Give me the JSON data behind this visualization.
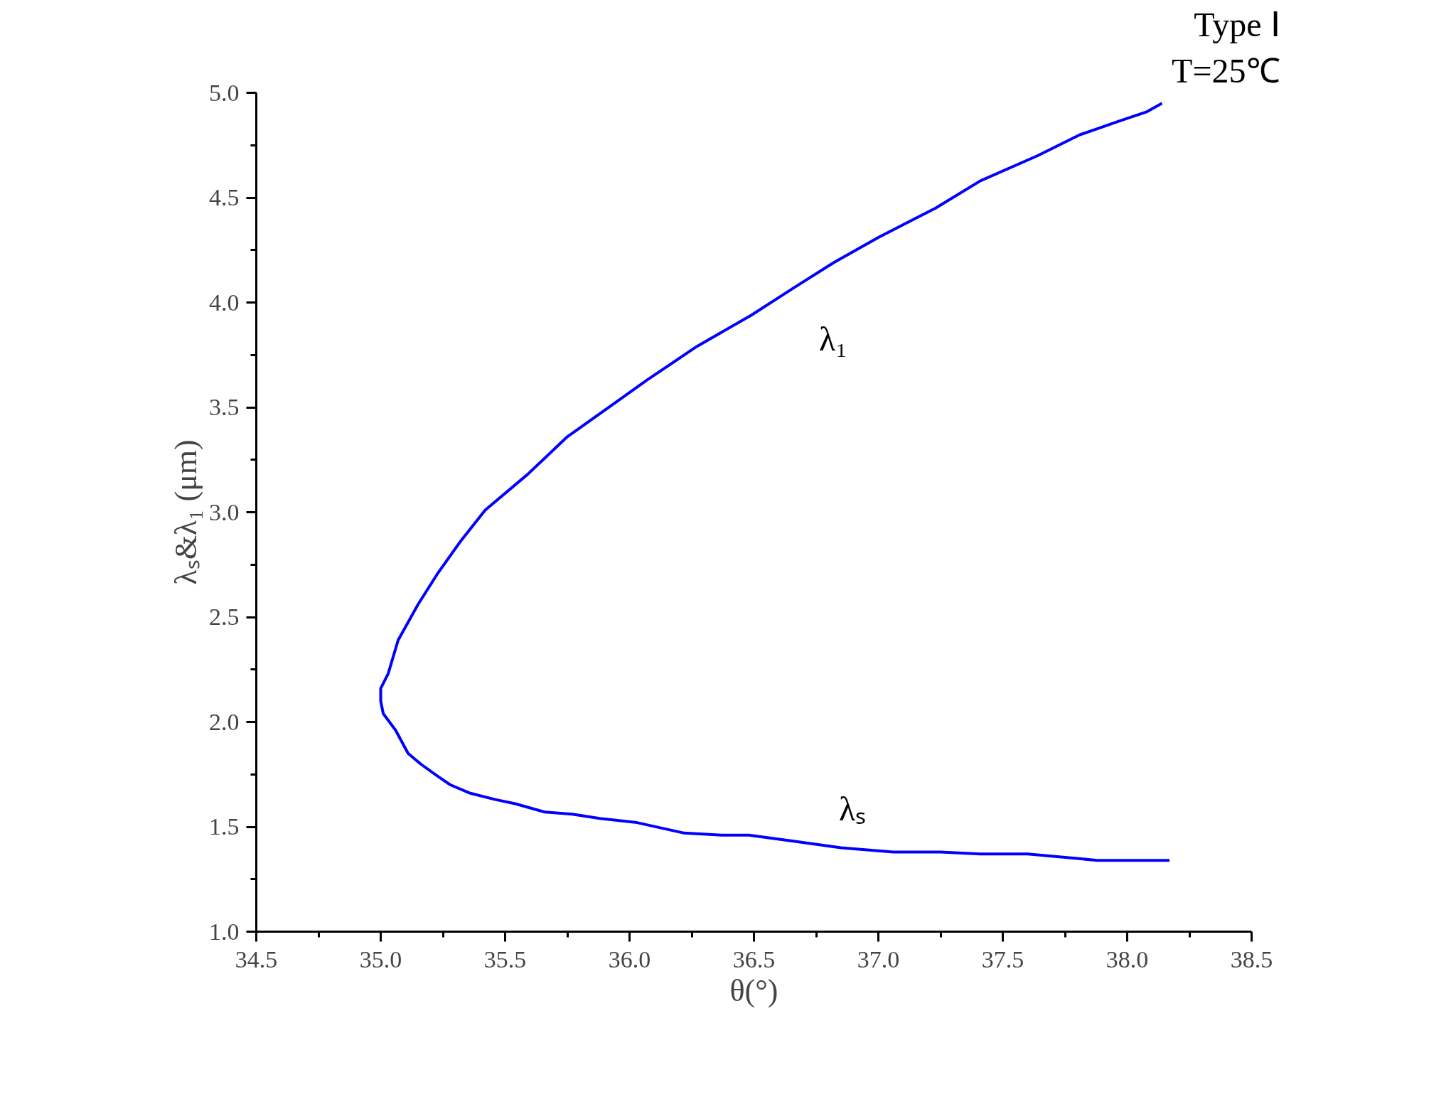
{
  "chart_data": {
    "type": "line",
    "xlabel": "θ(°)",
    "ylabel": "λₛ&λ₁ (μm)",
    "annotations": [
      "Type Ⅰ",
      "T=25℃",
      "λ₁",
      "λₛ"
    ],
    "xlim": [
      34.5,
      38.5
    ],
    "ylim": [
      1.0,
      5.0
    ],
    "xticks": [
      {
        "value": 34.5,
        "label": "34.5"
      },
      {
        "value": 35.0,
        "label": "35.0"
      },
      {
        "value": 35.5,
        "label": "35.5"
      },
      {
        "value": 36.0,
        "label": "36.0"
      },
      {
        "value": 36.5,
        "label": "36.5"
      },
      {
        "value": 37.0,
        "label": "37.0"
      },
      {
        "value": 37.5,
        "label": "37.5"
      },
      {
        "value": 38.0,
        "label": "38.0"
      },
      {
        "value": 38.5,
        "label": "38.5"
      }
    ],
    "yticks": [
      {
        "value": 1.0,
        "label": "1.0"
      },
      {
        "value": 1.5,
        "label": "1.5"
      },
      {
        "value": 2.0,
        "label": "2.0"
      },
      {
        "value": 2.5,
        "label": "2.5"
      },
      {
        "value": 3.0,
        "label": "3.0"
      },
      {
        "value": 3.5,
        "label": "3.5"
      },
      {
        "value": 4.0,
        "label": "4.0"
      },
      {
        "value": 4.5,
        "label": "4.5"
      },
      {
        "value": 5.0,
        "label": "5.0"
      }
    ],
    "grid": false,
    "marker": "none",
    "line_style": "solid",
    "series": [
      {
        "color": "#0000ff",
        "x": [
          38.14,
          38.08,
          37.98,
          37.81,
          37.64,
          37.41,
          37.23,
          37.0,
          36.82,
          36.66,
          36.49,
          36.27,
          36.07,
          35.94,
          35.75,
          35.59,
          35.42,
          35.32,
          35.23,
          35.15,
          35.07,
          35.03,
          35.0,
          35.0,
          35.01,
          35.06,
          35.11,
          35.16,
          35.23,
          35.28,
          35.36,
          35.46,
          35.54,
          35.66,
          35.77,
          35.88,
          36.03,
          36.22,
          36.37,
          36.48,
          36.67,
          36.85,
          37.06,
          37.25,
          37.41,
          37.6,
          37.79,
          37.88,
          38.17
        ],
        "values": [
          4.95,
          4.91,
          4.87,
          4.8,
          4.7,
          4.58,
          4.45,
          4.31,
          4.19,
          4.07,
          3.94,
          3.79,
          3.63,
          3.52,
          3.36,
          3.18,
          3.01,
          2.86,
          2.71,
          2.56,
          2.39,
          2.23,
          2.16,
          2.1,
          2.04,
          1.96,
          1.85,
          1.8,
          1.74,
          1.7,
          1.66,
          1.63,
          1.61,
          1.57,
          1.56,
          1.54,
          1.52,
          1.47,
          1.46,
          1.46,
          1.43,
          1.4,
          1.38,
          1.38,
          1.37,
          1.37,
          1.35,
          1.34,
          1.34
        ]
      }
    ]
  }
}
